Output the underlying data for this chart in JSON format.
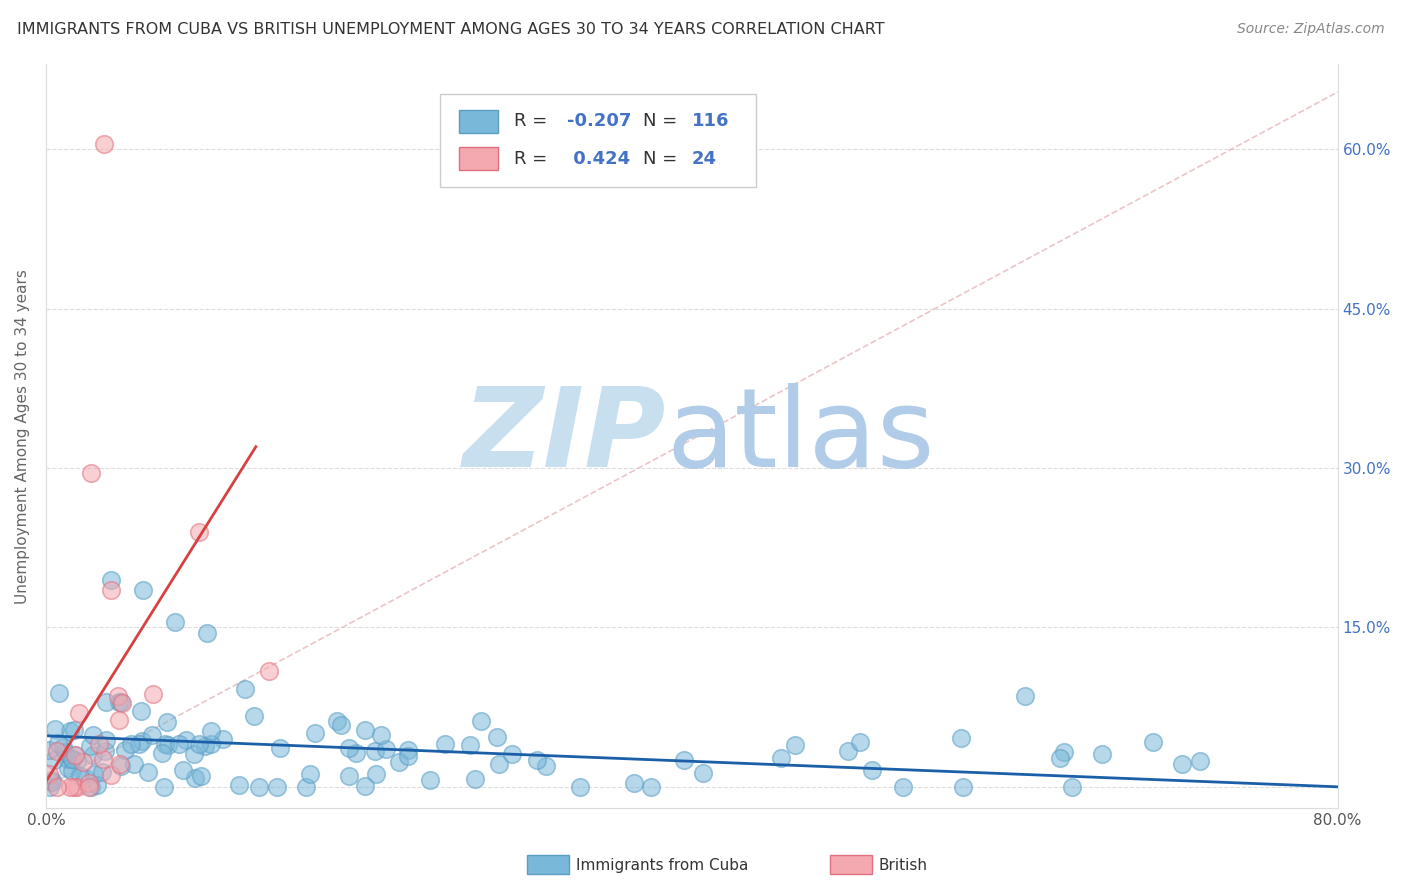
{
  "title": "IMMIGRANTS FROM CUBA VS BRITISH UNEMPLOYMENT AMONG AGES 30 TO 34 YEARS CORRELATION CHART",
  "source": "Source: ZipAtlas.com",
  "ylabel": "Unemployment Among Ages 30 to 34 years",
  "xlim": [
    0.0,
    0.8
  ],
  "ylim": [
    -0.02,
    0.68
  ],
  "blue_color": "#7ab8d9",
  "blue_edge_color": "#5a9ec4",
  "pink_color": "#f4a8b0",
  "pink_edge_color": "#e07080",
  "blue_line_color": "#1a5fa8",
  "pink_line_color": "#d94040",
  "dash_line_color": "#cccccc",
  "watermark_zip_color": "#c8dff0",
  "watermark_atlas_color": "#b0cce8",
  "blue_R": -0.207,
  "blue_N": 116,
  "pink_R": 0.424,
  "pink_N": 24,
  "blue_scatter_seed": 42,
  "pink_scatter_seed": 123,
  "background_color": "#ffffff",
  "grid_color": "#dddddd",
  "ytick_color": "#4472c4",
  "title_color": "#333333",
  "source_color": "#888888"
}
